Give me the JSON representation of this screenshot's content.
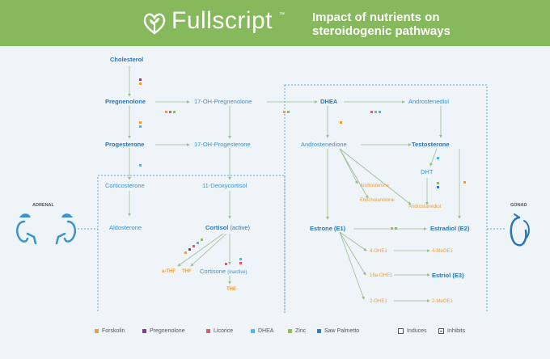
{
  "header": {
    "brand": "Fullscript",
    "tm": "™",
    "title": "Impact of nutrients on steroidogenic pathways"
  },
  "icons": {
    "logo": "sprout-heart-icon",
    "adrenal": "kidneys-adrenal-icon",
    "gonad": "gonad-icon"
  },
  "sides": {
    "adrenal": "ADRENAL",
    "gonad": "GONAD"
  },
  "nodes": {
    "cholesterol": "Cholesterol",
    "pregnenolone": "Pregnenolone",
    "oh17_pregnenolone": "17-OH-Pregnenolone",
    "progesterone": "Progesterone",
    "oh17_progesterone": "17-OH-Progesterone",
    "corticosterone": "Corticosterone",
    "deoxycortisol": "11-Deoxycortisol",
    "aldosterone": "Aldosterone",
    "cortisol": "Cortisol",
    "cortisol_note": "(active)",
    "cortisone": "Cortisone",
    "cortisone_note": "(inactive)",
    "thf_allo": "a-THF",
    "thf": "THF",
    "the": "THE",
    "dhea": "DHEA",
    "androstenediol": "Androstenediol",
    "androstenedione": "Androstenedione",
    "testosterone": "Testosterone",
    "dht": "DHT",
    "androsterone": "Androsterone",
    "etiocholanolone": "Etiocholanolone",
    "androstanediol": "Androstanediol",
    "estrone": "Estrone (E1)",
    "estradiol": "Estradiol (E2)",
    "estriol": "Estriol (E3)",
    "oh2_e1": "2-OHE1",
    "meoe1_4": "4-MeOE1",
    "oh4_e1": "4-OHE1",
    "oh16_e1": "16a-OHE1",
    "meoe1_2": "2-MeOE1"
  },
  "legend": [
    {
      "label": "Forskolin",
      "color": "#f39c33",
      "type": "fill"
    },
    {
      "label": "Pregnenolone",
      "color": "#7b3f8c",
      "type": "fill"
    },
    {
      "label": "Licorice",
      "color": "#e05a6d",
      "type": "fill"
    },
    {
      "label": "DHEA",
      "color": "#4fb8e6",
      "type": "fill"
    },
    {
      "label": "Zinc",
      "color": "#8cc152",
      "type": "fill"
    },
    {
      "label": "Saw Palmetto",
      "color": "#2f7fc1",
      "type": "fill"
    },
    {
      "label": "Induces",
      "color": "#555555",
      "type": "box"
    },
    {
      "label": "Inhibits",
      "color": "#555555",
      "type": "box-dash"
    }
  ],
  "colors": {
    "header": "#86b95b",
    "node": "#3a93cf",
    "node_bold": "#2a75b8",
    "metabolite": "#f39c33",
    "enzyme": "#8cc152",
    "arrow": "#9bbc8f",
    "dotted": "#5aa7d8"
  }
}
